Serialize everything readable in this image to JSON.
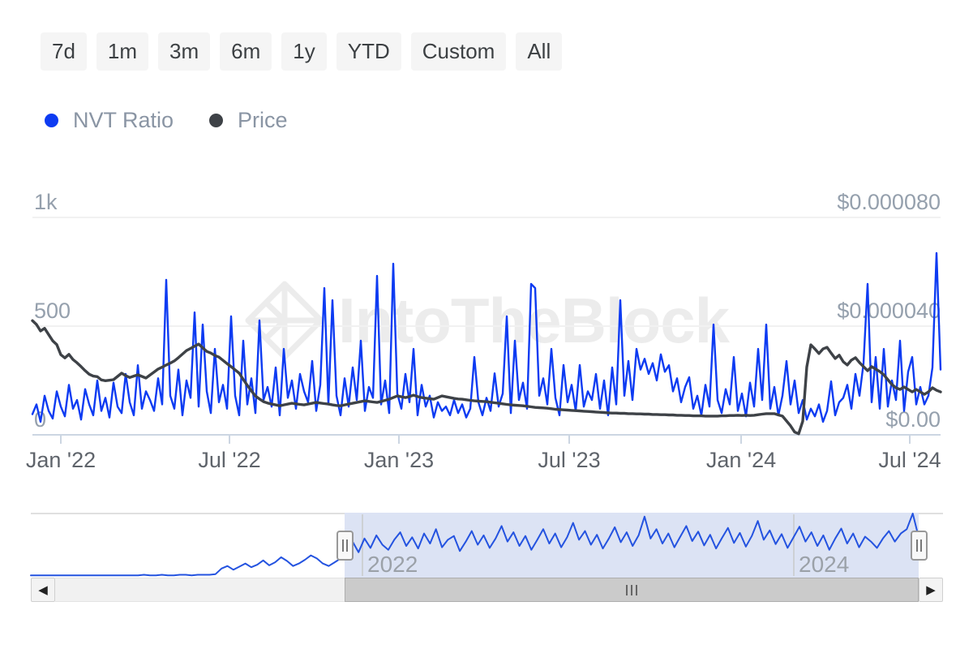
{
  "toolbar": {
    "buttons": [
      "7d",
      "1m",
      "3m",
      "6m",
      "1y",
      "YTD",
      "Custom",
      "All"
    ]
  },
  "legend": [
    {
      "label": "NVT Ratio",
      "color": "#0d3bf2"
    },
    {
      "label": "Price",
      "color": "#3e4247"
    }
  ],
  "watermark": {
    "text": "IntoTheBlock"
  },
  "icons": {
    "scroll_left_arrow": "◀",
    "scroll_right_arrow": "▶"
  },
  "colors": {
    "nvt_line": "#0d3bf2",
    "price_line": "#3e4247",
    "navigator_line": "#2453e0",
    "navigator_selection": "#dce3f4",
    "gridline": "#f1f1f1",
    "axis_line": "#ccd6e2"
  },
  "chart_data": {
    "type": "line",
    "title": "",
    "x_axis": {
      "tick_labels": [
        "Jan '22",
        "Jul '22",
        "Jan '23",
        "Jul '23",
        "Jan '24",
        "Jul '24"
      ]
    },
    "y_axis_left": {
      "labels": [
        "1k",
        "500",
        "0"
      ],
      "min": 0,
      "max": 1000,
      "series": "NVT Ratio"
    },
    "y_axis_right": {
      "labels": [
        "$0.000080",
        "$0.000040",
        "$0.00"
      ],
      "min": 0,
      "max": 8e-05,
      "series": "Price"
    },
    "series": [
      {
        "name": "NVT Ratio",
        "axis": "left",
        "color": "#0d3bf2",
        "values": [
          95,
          140,
          60,
          180,
          110,
          75,
          200,
          130,
          85,
          230,
          120,
          160,
          70,
          210,
          140,
          90,
          250,
          110,
          170,
          80,
          240,
          130,
          100,
          280,
          150,
          90,
          320,
          120,
          200,
          160,
          110,
          260,
          140,
          713,
          180,
          120,
          300,
          90,
          250,
          170,
          563,
          130,
          507,
          200,
          100,
          395,
          150,
          230,
          120,
          545,
          180,
          90,
          433,
          140,
          260,
          100,
          526,
          160,
          220,
          130,
          310,
          90,
          395,
          170,
          250,
          120,
          280,
          200,
          150,
          340,
          110,
          230,
          675,
          140,
          619,
          180,
          90,
          260,
          130,
          310,
          160,
          433,
          110,
          220,
          170,
          731,
          140,
          250,
          100,
          787,
          190,
          120,
          280,
          150,
          395,
          90,
          230,
          130,
          180,
          80,
          150,
          110,
          130,
          90,
          160,
          100,
          140,
          80,
          120,
          358,
          150,
          90,
          170,
          110,
          283,
          130,
          190,
          545,
          100,
          433,
          160,
          240,
          120,
          694,
          675,
          180,
          260,
          140,
          395,
          170,
          90,
          321,
          150,
          230,
          110,
          321,
          130,
          200,
          160,
          280,
          120,
          250,
          90,
          310,
          140,
          619,
          180,
          340,
          160,
          395,
          300,
          350,
          280,
          330,
          250,
          370,
          290,
          320,
          200,
          260,
          150,
          220,
          265,
          120,
          180,
          90,
          230,
          130,
          507,
          160,
          100,
          210,
          140,
          358,
          110,
          190,
          85,
          240,
          130,
          395,
          160,
          507,
          120,
          220,
          90,
          180,
          339,
          140,
          250,
          100,
          160,
          70,
          120,
          85,
          140,
          60,
          110,
          246,
          90,
          150,
          170,
          230,
          120,
          280,
          180,
          330,
          694,
          150,
          358,
          120,
          395,
          130,
          250,
          160,
          433,
          110,
          290,
          358,
          140,
          220,
          140,
          180,
          310,
          836,
          300
        ]
      },
      {
        "name": "Price",
        "axis": "right",
        "color": "#3e4247",
        "unit": "USD millionths (value × 1e-6 USD)",
        "values_micro_usd": [
          42,
          40.6,
          38.2,
          39.2,
          36.9,
          34.6,
          33.2,
          29.5,
          28.3,
          29.6,
          27.7,
          26.5,
          25.1,
          23.6,
          22.3,
          21.6,
          21.4,
          20.2,
          19.9,
          20.1,
          20.3,
          21.5,
          22.7,
          21.8,
          21.1,
          21.6,
          22.1,
          21.5,
          20.9,
          22,
          23.1,
          24.2,
          24.9,
          25.7,
          26.4,
          27.2,
          28.4,
          29.7,
          31,
          31.8,
          32.6,
          33.4,
          32,
          30.7,
          30.1,
          29.2,
          28.6,
          27.4,
          26.2,
          25.1,
          23.9,
          22.7,
          20.4,
          18.2,
          16.2,
          14.3,
          13.2,
          12.2,
          11.7,
          11.3,
          11,
          10.7,
          11,
          11.3,
          11.6,
          11.4,
          11.2,
          11,
          11.3,
          11.6,
          11.9,
          11.7,
          11.5,
          11.3,
          11,
          10.8,
          10.7,
          11,
          11.3,
          11.6,
          11.9,
          12.2,
          12.5,
          12.3,
          12.1,
          11.9,
          12.3,
          12.7,
          13.1,
          13.7,
          14.3,
          14,
          13.7,
          14.1,
          14.6,
          14.1,
          13.7,
          13.5,
          13.3,
          13.1,
          13.7,
          14.3,
          14,
          13.7,
          13.4,
          13.2,
          13.1,
          12.9,
          12.7,
          12.5,
          12.4,
          12.3,
          12.2,
          12,
          11.8,
          11.6,
          11.4,
          11.2,
          11,
          10.9,
          10.8,
          10.7,
          10.5,
          10.3,
          10.1,
          10,
          9.9,
          9.8,
          9.6,
          9.4,
          9.3,
          9.2,
          9.1,
          9,
          8.9,
          8.8,
          8.7,
          8.6,
          8.5,
          8.4,
          8.3,
          8.2,
          8.1,
          8,
          8,
          7.9,
          7.9,
          7.8,
          7.8,
          7.7,
          7.7,
          7.6,
          7.6,
          7.5,
          7.5,
          7.4,
          7.4,
          7.3,
          7.3,
          7.2,
          7.2,
          7.1,
          7.1,
          7,
          7,
          7,
          6.9,
          6.9,
          6.9,
          6.9,
          7,
          7,
          7.1,
          7.1,
          7.2,
          7.1,
          7.2,
          7.1,
          7.2,
          7.4,
          7.6,
          7.8,
          7.8,
          7.8,
          7.3,
          6.9,
          5.1,
          3.3,
          1,
          0.4,
          5,
          25,
          33.1,
          31.6,
          29.9,
          31.6,
          32.2,
          30.1,
          28.1,
          29.3,
          26.9,
          25.7,
          27.5,
          28.4,
          26.6,
          25.1,
          23.6,
          25.1,
          24.2,
          23.3,
          22.1,
          20.3,
          18.5,
          17.3,
          16.7,
          17.6,
          16.7,
          15.8,
          16.7,
          15.8,
          14.9,
          15.8,
          17.3,
          16.4,
          15.8
        ]
      }
    ],
    "navigator": {
      "year_labels": [
        "2022",
        "2024"
      ],
      "values_relative": [
        1,
        1,
        1,
        1,
        1,
        1,
        1,
        1,
        1,
        1,
        1,
        1,
        1,
        1,
        1,
        1,
        1,
        1,
        1,
        2,
        1,
        1,
        2,
        1,
        1,
        2,
        2,
        1,
        2,
        2,
        2,
        3,
        12,
        16,
        10,
        15,
        20,
        14,
        18,
        25,
        17,
        22,
        30,
        24,
        16,
        20,
        26,
        33,
        28,
        20,
        16,
        22,
        28,
        40,
        55,
        38,
        60,
        45,
        65,
        50,
        42,
        58,
        70,
        48,
        62,
        44,
        68,
        52,
        75,
        46,
        58,
        64,
        40,
        55,
        72,
        50,
        65,
        45,
        60,
        80,
        55,
        70,
        48,
        64,
        42,
        58,
        75,
        52,
        68,
        46,
        62,
        85,
        58,
        72,
        50,
        66,
        44,
        60,
        78,
        54,
        70,
        48,
        65,
        95,
        60,
        75,
        52,
        68,
        46,
        63,
        80,
        56,
        71,
        49,
        66,
        44,
        61,
        77,
        53,
        69,
        47,
        64,
        88,
        58,
        73,
        51,
        67,
        45,
        62,
        79,
        55,
        70,
        48,
        65,
        42,
        60,
        76,
        52,
        68,
        46,
        63,
        55,
        45,
        60,
        72,
        55,
        68,
        75,
        100,
        62
      ]
    }
  }
}
